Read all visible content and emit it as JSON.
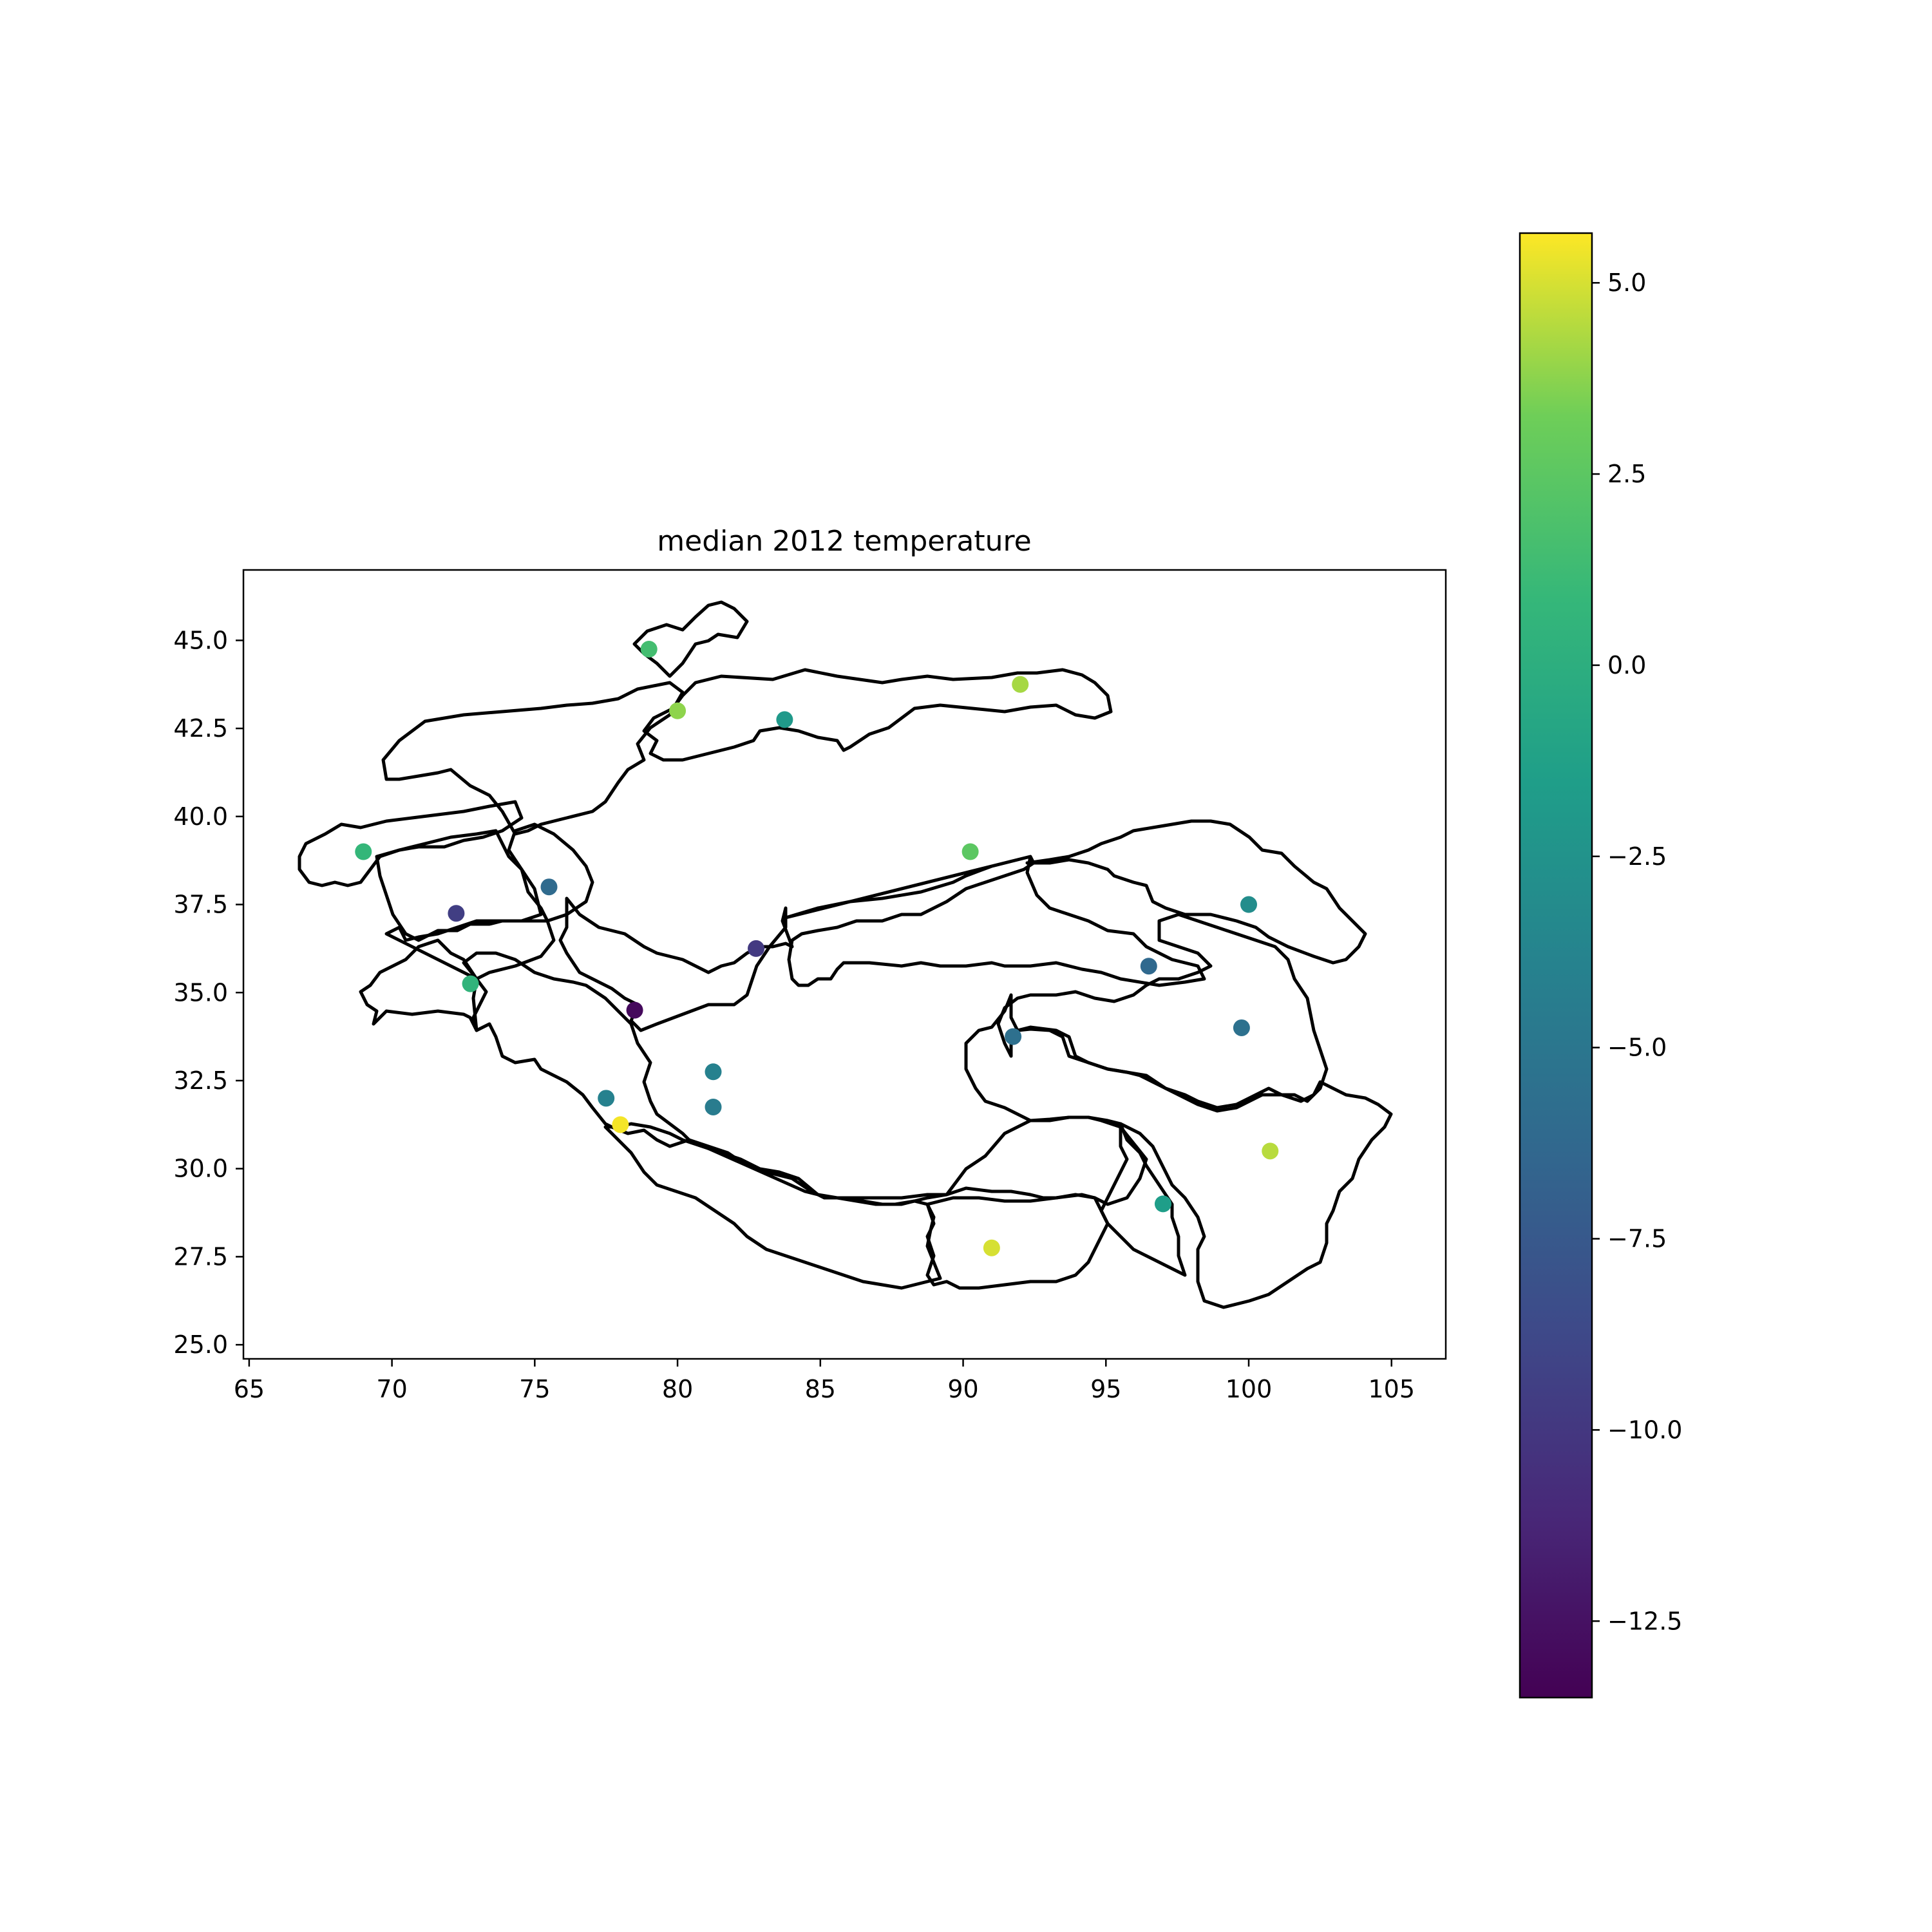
{
  "chart_data": {
    "type": "scatter",
    "title": "median 2012 temperature",
    "xlabel": "",
    "ylabel": "",
    "xlim": [
      64.8,
      106.9
    ],
    "ylim": [
      24.6,
      47.0
    ],
    "x_ticks": [
      "65",
      "70",
      "75",
      "80",
      "85",
      "90",
      "95",
      "100",
      "105"
    ],
    "y_ticks": [
      "25.0",
      "27.5",
      "30.0",
      "32.5",
      "35.0",
      "37.5",
      "40.0",
      "42.5",
      "45.0"
    ],
    "grid": false,
    "basemap": "basin outlines",
    "points": [
      {
        "x": 79.0,
        "y": 44.75,
        "value": 1.5
      },
      {
        "x": 80.0,
        "y": 43.0,
        "value": 3.8
      },
      {
        "x": 83.75,
        "y": 42.75,
        "value": -2.0
      },
      {
        "x": 92.0,
        "y": 43.75,
        "value": 4.2
      },
      {
        "x": 69.0,
        "y": 39.0,
        "value": 0.8
      },
      {
        "x": 75.5,
        "y": 38.0,
        "value": -6.0
      },
      {
        "x": 72.25,
        "y": 37.25,
        "value": -9.5
      },
      {
        "x": 72.75,
        "y": 35.25,
        "value": 0.5
      },
      {
        "x": 78.5,
        "y": 34.5,
        "value": -13.0
      },
      {
        "x": 82.75,
        "y": 36.25,
        "value": -9.8
      },
      {
        "x": 90.25,
        "y": 39.0,
        "value": 2.5
      },
      {
        "x": 100.0,
        "y": 37.5,
        "value": -3.0
      },
      {
        "x": 96.5,
        "y": 35.75,
        "value": -6.2
      },
      {
        "x": 91.75,
        "y": 33.75,
        "value": -5.6
      },
      {
        "x": 99.75,
        "y": 34.0,
        "value": -5.5
      },
      {
        "x": 81.25,
        "y": 32.75,
        "value": -4.0
      },
      {
        "x": 77.5,
        "y": 32.0,
        "value": -4.0
      },
      {
        "x": 81.25,
        "y": 31.75,
        "value": -4.5
      },
      {
        "x": 78.0,
        "y": 31.25,
        "value": 5.5
      },
      {
        "x": 100.75,
        "y": 30.5,
        "value": 4.5
      },
      {
        "x": 97.0,
        "y": 29.0,
        "value": -1.5
      },
      {
        "x": 91.0,
        "y": 27.75,
        "value": 5.0
      }
    ],
    "colorbar": {
      "colormap": "viridis",
      "range": [
        -13.5,
        5.65
      ],
      "ticks": [
        "5.0",
        "2.5",
        "0.0",
        "−2.5",
        "−5.0",
        "−7.5",
        "−10.0",
        "−12.5"
      ]
    }
  }
}
